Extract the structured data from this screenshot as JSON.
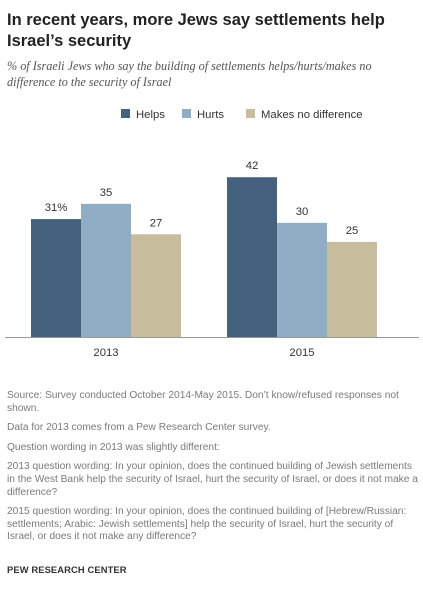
{
  "title": "In recent years, more Jews say settlements help Israel’s security",
  "subtitle": "% of Israeli Jews who say the building of settlements helps/hurts/makes no difference to the security of Israel",
  "chart_data": {
    "type": "bar",
    "categories": [
      "2013",
      "2015"
    ],
    "series": [
      {
        "name": "Helps",
        "values": [
          31,
          42
        ],
        "labels": [
          "31%",
          "42"
        ],
        "color": "#44627e"
      },
      {
        "name": "Hurts",
        "values": [
          35,
          30
        ],
        "labels": [
          "35",
          "30"
        ],
        "color": "#8fadc5"
      },
      {
        "name": "Makes no difference",
        "values": [
          27,
          25
        ],
        "labels": [
          "27",
          "25"
        ],
        "color": "#c7bc9b"
      }
    ],
    "ylim": [
      0,
      46
    ],
    "grid": false,
    "legend": "top"
  },
  "notes": {
    "source": "Source: Survey conducted October 2014-May 2015. Don’t know/refused responses not shown.",
    "data_2013": "Data for 2013 comes from a Pew Research Center survey.",
    "wording_note": "Question wording in 2013 was slightly different:",
    "wording_2013": "2013 question wording: In your opinion, does the continued building of Jewish settlements in the West Bank help the security of Israel, hurt the security of Israel, or does it not make a difference?",
    "wording_2015": "2015 question wording: In your opinion, does the continued building of [Hebrew/Russian: settlements; Arabic: Jewish settlements] help the security of Israel, hurt the security of Israel, or does it not make any difference?"
  },
  "source_org": "PEW RESEARCH CENTER"
}
